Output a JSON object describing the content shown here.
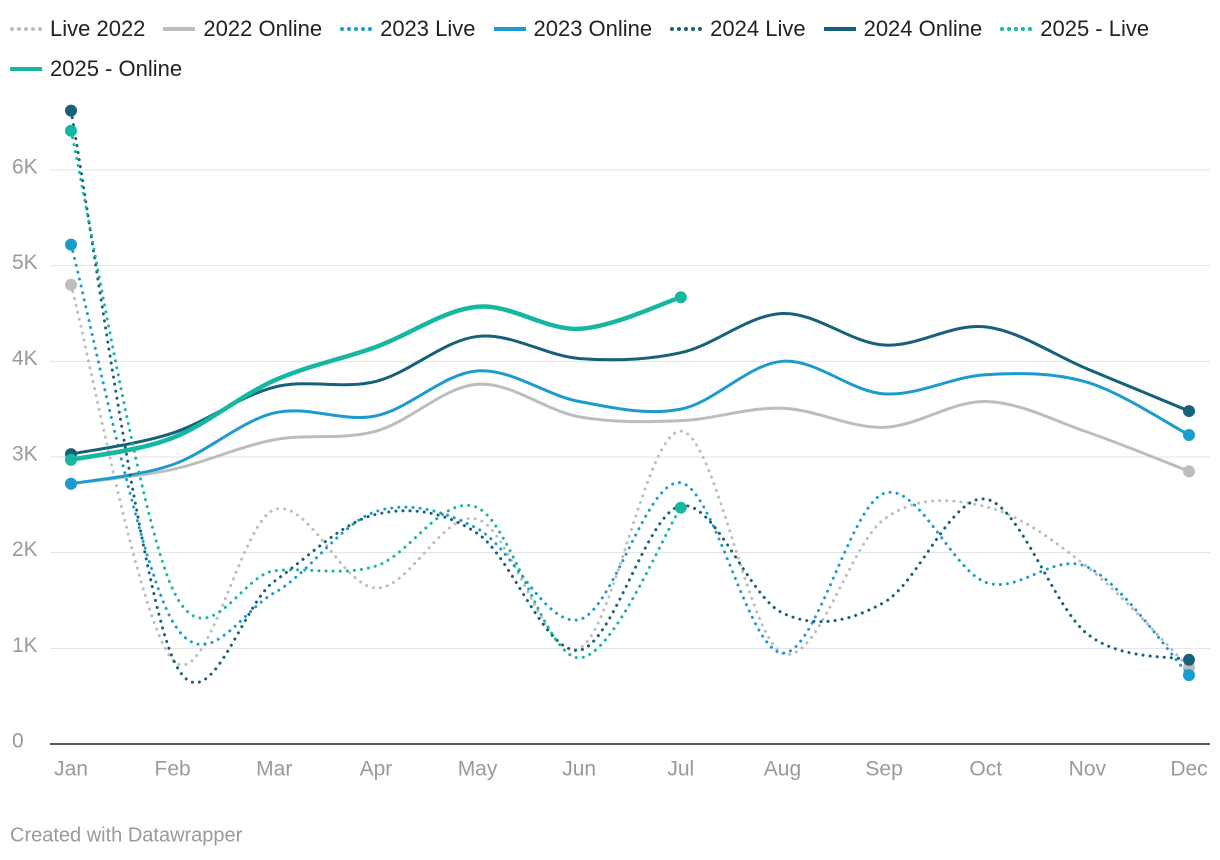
{
  "chart_data": {
    "type": "line",
    "categories": [
      "Jan",
      "Feb",
      "Mar",
      "Apr",
      "May",
      "Jun",
      "Jul",
      "Aug",
      "Sep",
      "Oct",
      "Nov",
      "Dec"
    ],
    "series": [
      {
        "name": "Live 2022",
        "color": "#bdbdbd",
        "style": "dotted",
        "values": [
          4800,
          880,
          2450,
          1630,
          2350,
          1000,
          3270,
          950,
          2350,
          2480,
          1850,
          800
        ]
      },
      {
        "name": "2022 Online",
        "color": "#bdbdbd",
        "style": "solid",
        "values": [
          2720,
          2870,
          3180,
          3270,
          3760,
          3420,
          3380,
          3510,
          3310,
          3580,
          3260,
          2850
        ]
      },
      {
        "name": "2023 Live",
        "color": "#1d9bce",
        "style": "dotted",
        "values": [
          5220,
          1280,
          1580,
          2430,
          2250,
          1300,
          2730,
          950,
          2620,
          1690,
          1850,
          720
        ]
      },
      {
        "name": "2023 Online",
        "color": "#1d9bce",
        "style": "solid",
        "values": [
          2720,
          2920,
          3460,
          3430,
          3900,
          3580,
          3500,
          4000,
          3660,
          3860,
          3780,
          3230
        ]
      },
      {
        "name": "2024 Live",
        "color": "#17607a",
        "style": "dotted",
        "values": [
          6620,
          900,
          1700,
          2400,
          2200,
          980,
          2490,
          1370,
          1480,
          2560,
          1150,
          880
        ]
      },
      {
        "name": "2024 Online",
        "color": "#17607a",
        "style": "solid",
        "values": [
          3030,
          3250,
          3730,
          3790,
          4260,
          4030,
          4090,
          4500,
          4170,
          4360,
          3920,
          3480
        ]
      },
      {
        "name": "2025 - Live",
        "color": "#15b79f",
        "style": "dotted",
        "values": [
          6410,
          1620,
          1810,
          1860,
          2470,
          900,
          2470,
          null,
          null,
          null,
          null,
          null
        ]
      },
      {
        "name": "2025 - Online",
        "color": "#15b79f",
        "style": "solid",
        "values": [
          2970,
          3200,
          3800,
          4150,
          4570,
          4340,
          4670,
          null,
          null,
          null,
          null,
          null
        ]
      }
    ],
    "ylim": [
      0,
      6700
    ],
    "yticks": [
      0,
      {
        "value": 1000,
        "label": "1K"
      },
      {
        "value": 2000,
        "label": "2K"
      },
      {
        "value": 3000,
        "label": "3K"
      },
      {
        "value": 4000,
        "label": "4K"
      },
      {
        "value": 5000,
        "label": "5K"
      },
      {
        "value": 6000,
        "label": "6K"
      }
    ],
    "grid": true,
    "credit": "Created with Datawrapper"
  }
}
